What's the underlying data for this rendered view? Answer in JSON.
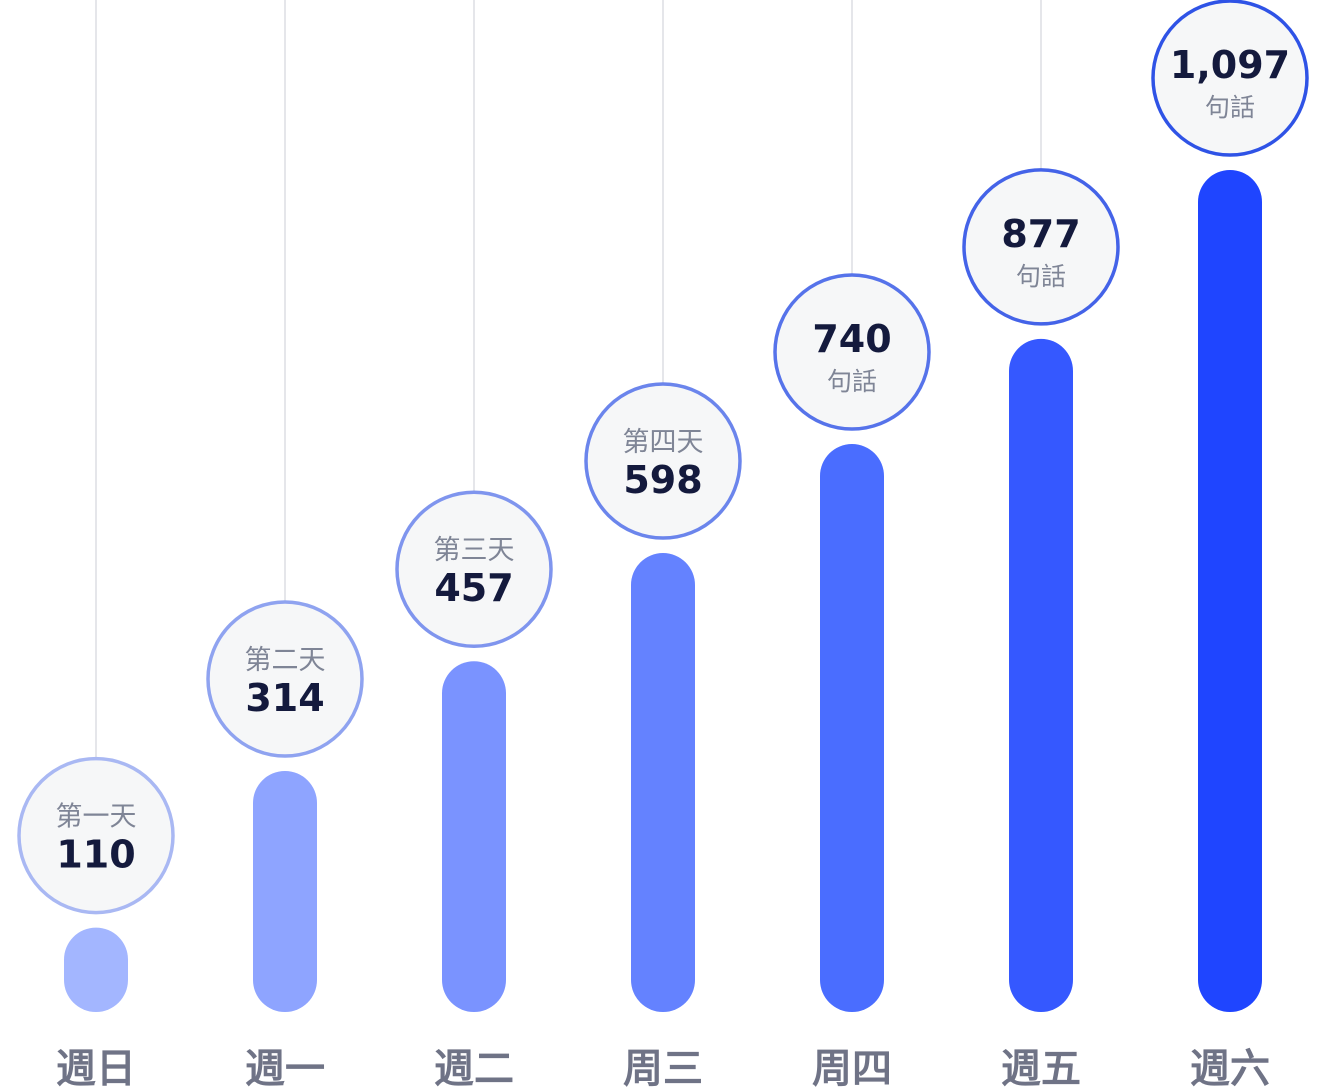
{
  "chart_data": {
    "type": "bar",
    "categories": [
      "週日",
      "週一",
      "週二",
      "周三",
      "周四",
      "週五",
      "週六"
    ],
    "values": [
      110,
      314,
      457,
      598,
      740,
      877,
      1097
    ],
    "value_labels": [
      "110",
      "314",
      "457",
      "598",
      "740",
      "877",
      "1,097"
    ],
    "caption_above": [
      "第一天",
      "第二天",
      "第三天",
      "第四天",
      "",
      "",
      ""
    ],
    "caption_below": [
      "",
      "",
      "",
      "",
      "句話",
      "句話",
      "句話"
    ],
    "title": "",
    "xlabel": "",
    "ylabel": "",
    "ylim": [
      0,
      1097
    ],
    "grid": "vertical guide lines from each value bubble to the top",
    "colors": [
      "#a3b6ff",
      "#8ea4ff",
      "#7a93ff",
      "#6482ff",
      "#4a6dff",
      "#3558ff",
      "#1f45ff"
    ],
    "bubble_border_colors": [
      "#a9b8f3",
      "#8fa3f0",
      "#7f95ee",
      "#6b85ec",
      "#5673ea",
      "#4463e8",
      "#2f53e6"
    ],
    "bubble_fill": "#f6f7f8",
    "guide_line_color": "#e5e6ea"
  }
}
